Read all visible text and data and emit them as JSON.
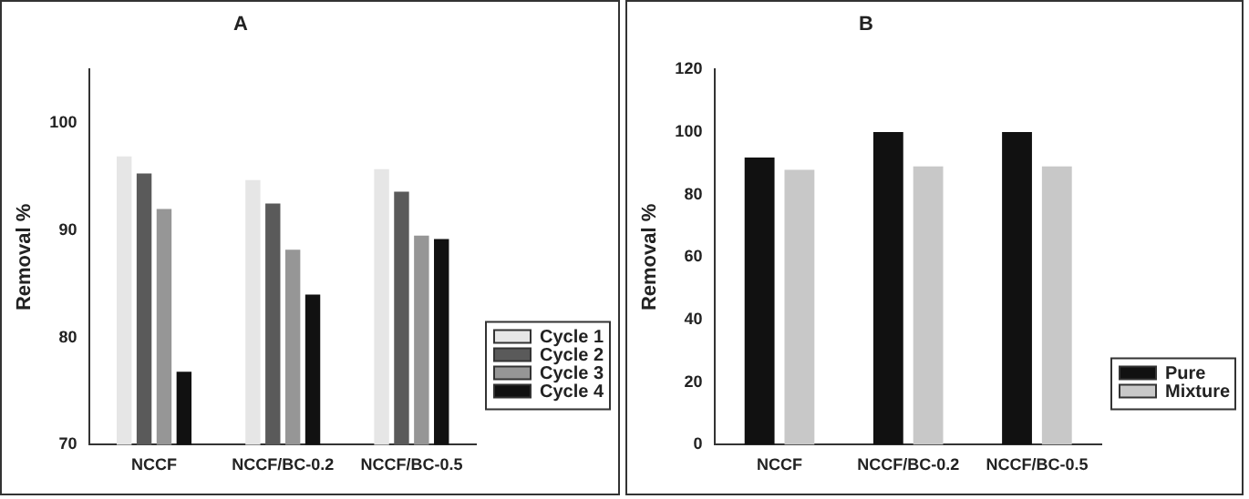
{
  "chart_data": [
    {
      "type": "bar",
      "title": "A",
      "ylabel": "Removal %",
      "categories": [
        "NCCF",
        "NCCF/BC-0.2",
        "NCCF/BC-0.5"
      ],
      "series": [
        {
          "name": "Cycle 1",
          "color": "#e6e6e6",
          "values": [
            96.9,
            94.7,
            95.7
          ]
        },
        {
          "name": "Cycle 2",
          "color": "#5a5a5a",
          "values": [
            95.3,
            92.5,
            93.6
          ]
        },
        {
          "name": "Cycle 3",
          "color": "#969696",
          "values": [
            92.0,
            88.2,
            89.5
          ]
        },
        {
          "name": "Cycle 4",
          "color": "#111111",
          "values": [
            76.8,
            84.0,
            89.2
          ]
        }
      ],
      "ylim": [
        70,
        105
      ],
      "yticks": [
        70,
        80,
        90,
        100
      ],
      "grid": false,
      "legend": "bottom right"
    },
    {
      "type": "bar",
      "title": "B",
      "ylabel": "Removal %",
      "categories": [
        "NCCF",
        "NCCF/BC-0.2",
        "NCCF/BC-0.5"
      ],
      "series": [
        {
          "name": "Pure",
          "color": "#111111",
          "values": [
            91.9,
            100,
            100
          ]
        },
        {
          "name": "Mixture",
          "color": "#c8c8c8",
          "values": [
            87.9,
            89.0,
            89.0
          ]
        }
      ],
      "ylim": [
        0,
        120
      ],
      "yticks": [
        0,
        20,
        40,
        60,
        80,
        100,
        120
      ],
      "grid": false,
      "legend": "bottom right"
    }
  ]
}
